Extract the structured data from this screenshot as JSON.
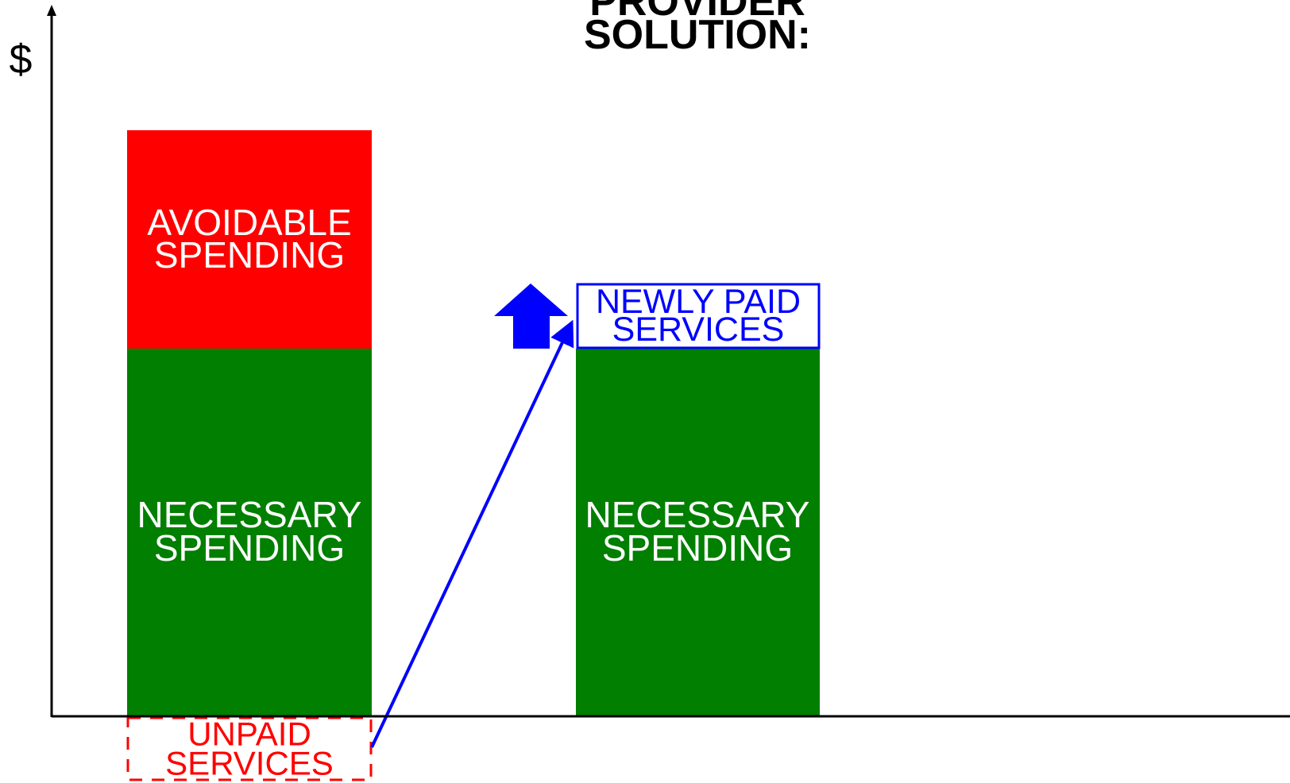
{
  "title": [
    "PROVIDER",
    "SOLUTION:"
  ],
  "axis_label": "$",
  "before": {
    "avoidable": [
      "AVOIDABLE",
      "SPENDING"
    ],
    "necessary": [
      "NECESSARY",
      "SPENDING"
    ],
    "unpaid": [
      "UNPAID",
      "SERVICES"
    ]
  },
  "after": {
    "newly_paid": [
      "NEWLY PAID",
      "SERVICES"
    ],
    "necessary": [
      "NECESSARY",
      "SPENDING"
    ]
  }
}
